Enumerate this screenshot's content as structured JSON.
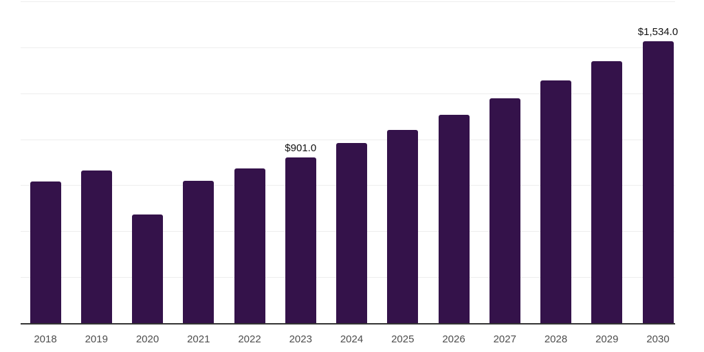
{
  "chart": {
    "background_color": "#ffffff",
    "bar_color": "#34124a",
    "gridline_color": "#ededed",
    "axis_line_color": "#333333",
    "tick_label_color": "#4d4d4d",
    "data_label_color": "#111111"
  },
  "chart_data": {
    "type": "bar",
    "title": "",
    "xlabel": "",
    "ylabel": "",
    "categories": [
      "2018",
      "2019",
      "2020",
      "2021",
      "2022",
      "2023",
      "2024",
      "2025",
      "2026",
      "2027",
      "2028",
      "2029",
      "2030"
    ],
    "values": [
      770,
      830,
      591,
      774,
      841,
      901,
      979,
      1050,
      1132,
      1222,
      1319,
      1424,
      1534
    ],
    "visible_data_labels": [
      {
        "category": "2023",
        "text": "$901.0"
      },
      {
        "category": "2030",
        "text": "$1,534.0"
      }
    ],
    "ylim": [
      0,
      1750
    ],
    "grid": true,
    "gridline_values": [
      250,
      500,
      750,
      1000,
      1250,
      1500,
      1750
    ],
    "legend": "none",
    "y_axis_labels_shown": false
  }
}
